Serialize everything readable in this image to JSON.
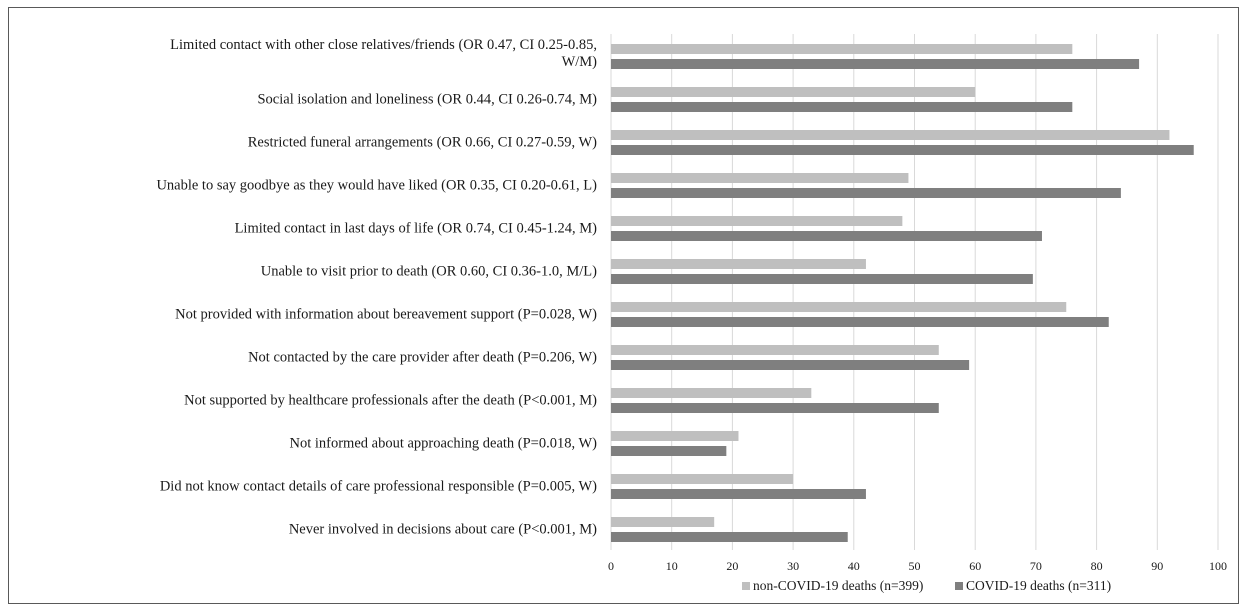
{
  "chart_data": {
    "type": "bar",
    "orientation": "horizontal",
    "title": "",
    "xlabel": "",
    "ylabel": "",
    "xlim": [
      0,
      100
    ],
    "x_ticks": [
      "0",
      "10",
      "20",
      "30",
      "40",
      "50",
      "60",
      "70",
      "80",
      "90",
      "100"
    ],
    "grid": true,
    "legend_position": "bottom-right",
    "categories": [
      [
        "Limited contact with other close relatives/friends (OR 0.47, CI 0.25-0.85,",
        "W/M)"
      ],
      [
        "Social isolation and loneliness (OR 0.44, CI 0.26-0.74, M)"
      ],
      [
        "Restricted funeral arrangements (OR 0.66, CI 0.27-0.59, W)"
      ],
      [
        "Unable to say goodbye as they would have liked (OR 0.35, CI 0.20-0.61, L)"
      ],
      [
        "Limited contact in last days of life (OR 0.74, CI 0.45-1.24, M)"
      ],
      [
        "Unable to visit prior to death (OR 0.60, CI 0.36-1.0, M/L)"
      ],
      [
        "Not provided with information about bereavement support (P=0.028, W)"
      ],
      [
        "Not contacted by the care provider after death (P=0.206, W)"
      ],
      [
        "Not supported by healthcare professionals after the death (P<0.001, M)"
      ],
      [
        "Not informed about approaching death (P=0.018, W)"
      ],
      [
        "Did not know contact details of care professional responsible (P=0.005, W)"
      ],
      [
        "Never involved in decisions about care (P<0.001, M)"
      ]
    ],
    "series": [
      {
        "name": "non-COVID-19 deaths (n=399)",
        "color": "#bfbfbf",
        "values": [
          76,
          60,
          92,
          49,
          48,
          42,
          75,
          54,
          33,
          21,
          30,
          17
        ]
      },
      {
        "name": "COVID-19 deaths (n=311)",
        "color": "#7f7f7f",
        "values": [
          87,
          76,
          96,
          84,
          71,
          69.5,
          82,
          59,
          54,
          19,
          42,
          39
        ]
      }
    ]
  }
}
